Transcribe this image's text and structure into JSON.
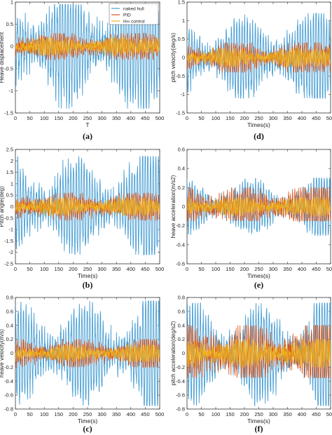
{
  "legend": [
    "naked hull",
    "PID",
    "H∞ control"
  ],
  "colors": {
    "naked": "#4a9fd4",
    "pid": "#d9541a",
    "hinf": "#edb120"
  },
  "chart_data": [
    {
      "type": "line",
      "panel": "(a)",
      "xlabel": "T",
      "ylabel": "Heave displacement",
      "xlim": [
        0,
        500
      ],
      "ylim": [
        -1.5,
        1
      ],
      "xticks": [
        "0",
        "50",
        "100",
        "150",
        "200",
        "250",
        "300",
        "350",
        "400",
        "450",
        "500"
      ],
      "yticks": [
        "-1.5",
        "-1",
        "-0.5",
        "0",
        "0.5",
        "1"
      ],
      "amplitude_envelope": {
        "naked": [
          -1.4,
          0.95
        ],
        "pid": [
          -0.3,
          0.3
        ],
        "hinf": [
          -0.2,
          0.2
        ]
      },
      "legend": "top-right",
      "series": [
        {
          "name": "naked hull"
        },
        {
          "name": "PID"
        },
        {
          "name": "H∞ control"
        }
      ]
    },
    {
      "type": "line",
      "panel": "(d)",
      "xlabel": "Times(s)",
      "ylabel": "pitch velocity(deg/s)",
      "xlim": [
        0,
        500
      ],
      "ylim": [
        -1.5,
        1.5
      ],
      "xticks": [
        "0",
        "50",
        "100",
        "150",
        "200",
        "250",
        "300",
        "350",
        "400",
        "450",
        "500"
      ],
      "yticks": [
        "-1.5",
        "-1",
        "-0.5",
        "0",
        "0.5",
        "1",
        "1.5"
      ],
      "amplitude_envelope": {
        "naked": [
          -1.1,
          1.2
        ],
        "pid": [
          -0.4,
          0.4
        ],
        "hinf": [
          -0.25,
          0.25
        ]
      }
    },
    {
      "type": "line",
      "panel": "(b)",
      "xlabel": "Time(s)",
      "ylabel": "Pitch angle(deg)",
      "xlim": [
        0,
        500
      ],
      "ylim": [
        -2.5,
        2.5
      ],
      "xticks": [
        "0",
        "50",
        "100",
        "150",
        "200",
        "250",
        "300",
        "350",
        "400",
        "450",
        "500"
      ],
      "yticks": [
        "-2.5",
        "-2",
        "-1.5",
        "-1",
        "-0.5",
        "0",
        "0.5",
        "1",
        "1.5",
        "2",
        "2.5"
      ],
      "amplitude_envelope": {
        "naked": [
          -2.1,
          2.2
        ],
        "pid": [
          -0.6,
          0.6
        ],
        "hinf": [
          -0.4,
          0.4
        ]
      }
    },
    {
      "type": "line",
      "panel": "(e)",
      "xlabel": "Times(s)",
      "ylabel": "heave acceleration(m/s2)",
      "xlim": [
        0,
        500
      ],
      "ylim": [
        -0.6,
        0.6
      ],
      "xticks": [
        "0",
        "50",
        "100",
        "150",
        "200",
        "250",
        "300",
        "350",
        "400",
        "450",
        "500"
      ],
      "yticks": [
        "-0.6",
        "-0.4",
        "-0.2",
        "0",
        "0.2",
        "0.4",
        "0.6"
      ],
      "amplitude_envelope": {
        "naked": [
          -0.3,
          0.3
        ],
        "pid": [
          -0.15,
          0.2
        ],
        "hinf": [
          -0.1,
          0.1
        ]
      }
    },
    {
      "type": "line",
      "panel": "(c)",
      "xlabel": "Time(s)",
      "ylabel": "heave velocity(m/s)",
      "xlim": [
        0,
        500
      ],
      "ylim": [
        -0.8,
        0.8
      ],
      "xticks": [
        "0",
        "50",
        "100",
        "150",
        "200",
        "250",
        "300",
        "350",
        "400",
        "450",
        "500"
      ],
      "yticks": [
        "-0.8",
        "-0.6",
        "-0.4",
        "-0.2",
        "0",
        "0.2",
        "0.4",
        "0.6",
        "0.8"
      ],
      "amplitude_envelope": {
        "naked": [
          -0.75,
          0.75
        ],
        "pid": [
          -0.2,
          0.2
        ],
        "hinf": [
          -0.12,
          0.12
        ]
      }
    },
    {
      "type": "line",
      "panel": "(f)",
      "xlabel": "Times(s)",
      "ylabel": "pitch acceleration(deg/s2)",
      "xlim": [
        0,
        500
      ],
      "ylim": [
        -0.8,
        0.8
      ],
      "xticks": [
        "0",
        "50",
        "100",
        "150",
        "200",
        "250",
        "300",
        "350",
        "400",
        "450",
        "500"
      ],
      "yticks": [
        "-0.8",
        "-0.6",
        "-0.4",
        "-0.2",
        "0",
        "0.2",
        "0.4",
        "0.6",
        "0.8"
      ],
      "amplitude_envelope": {
        "naked": [
          -0.75,
          0.72
        ],
        "pid": [
          -0.35,
          0.4
        ],
        "hinf": [
          -0.2,
          0.2
        ]
      }
    }
  ]
}
